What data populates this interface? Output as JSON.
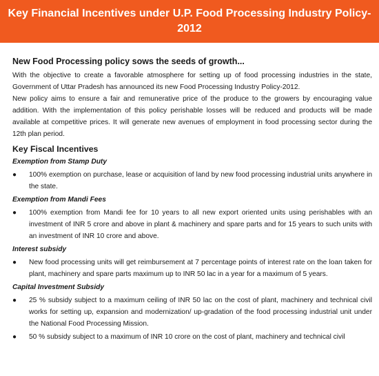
{
  "header": {
    "title": "Key Financial Incentives under U.P. Food Processing Industry Policy- 2012"
  },
  "intro": {
    "heading": "New Food Processing policy sows the seeds of growth...",
    "paragraphs": [
      "With the objective to create a favorable atmosphere for setting up of food processing industries in the state, Government of Uttar Pradesh has announced its new Food Processing Industry Policy-2012.",
      "New policy aims to ensure a fair and remunerative price of the produce to the growers by encouraging value addition. With the implementation of this policy perishable losses will be reduced and products will be made available at competitive prices. It will generate new avenues of employment in food processing sector during the 12th plan period."
    ]
  },
  "fiscal": {
    "heading": "Key Fiscal Incentives",
    "sections": [
      {
        "title": "Exemption from Stamp Duty",
        "bullets": [
          "100% exemption on purchase, lease or acquisition of land by new food processing industrial units anywhere in the state."
        ]
      },
      {
        "title": "Exemption from Mandi Fees",
        "bullets": [
          "100% exemption from Mandi fee for 10 years to all new export oriented units using perishables with an investment of INR 5 crore and above in plant & machinery and spare parts and for 15 years to such units with an investment of INR 10 crore and above."
        ]
      },
      {
        "title": "Interest subsidy",
        "bullets": [
          "New food processing units will get reimbursement at 7 percentage points of interest rate on the loan taken for plant, machinery and spare parts maximum up to INR 50 lac in a year for a maximum of 5 years."
        ]
      },
      {
        "title": "Capital Investment Subsidy",
        "bullets": [
          "25 % subsidy subject to a maximum ceiling of INR 50 lac on the cost of  plant, machinery and technical civil works for setting up, expansion and modernization/ up-gradation of the food processing industrial unit under the National Food Processing Mission.",
          "50 % subsidy subject to a maximum of INR 10 crore on the cost of plant, machinery and technical civil"
        ]
      }
    ]
  }
}
